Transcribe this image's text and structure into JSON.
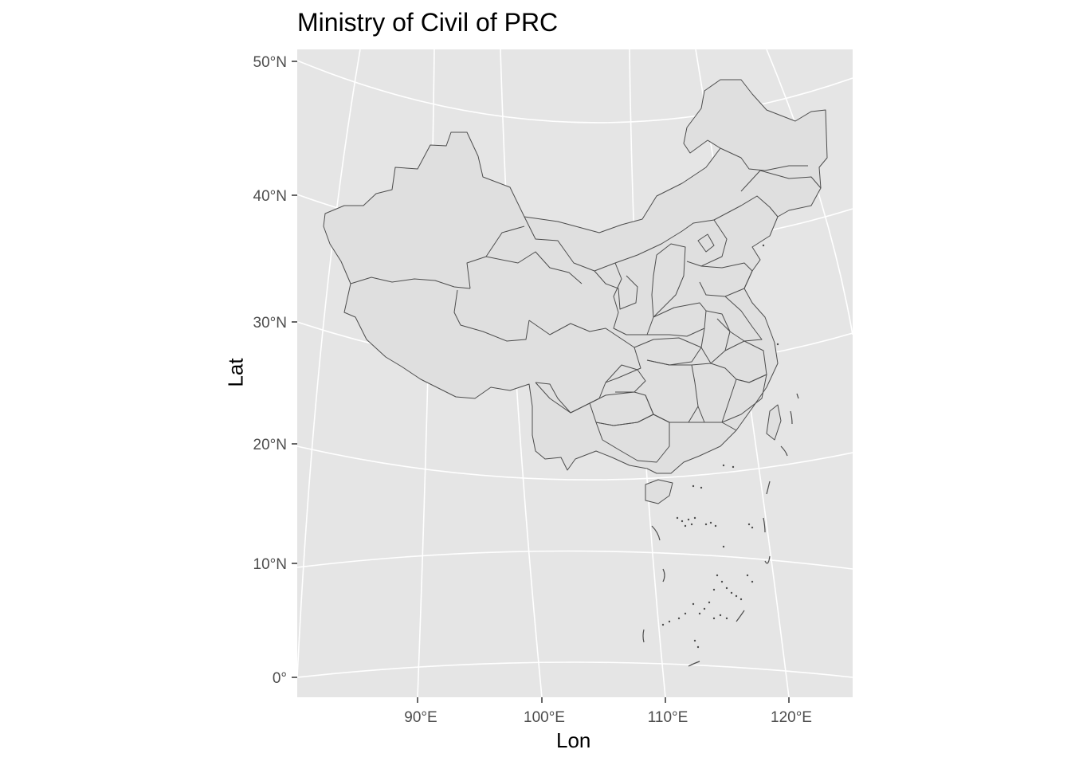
{
  "title": "Ministry of Civil of PRC",
  "x_axis_label": "Lon",
  "y_axis_label": "Lat",
  "lon_ticks": [
    "90°E",
    "100°E",
    "110°E",
    "120°E"
  ],
  "lat_ticks": [
    "0°",
    "10°N",
    "20°N",
    "30°N",
    "40°N",
    "50°N"
  ],
  "colors": {
    "panel_background": "#e5e5e5",
    "gridline": "#ffffff",
    "land_fill": "#dfdfdf",
    "border_stroke": "#4d4d4d",
    "tick_text": "#4d4d4d"
  }
}
